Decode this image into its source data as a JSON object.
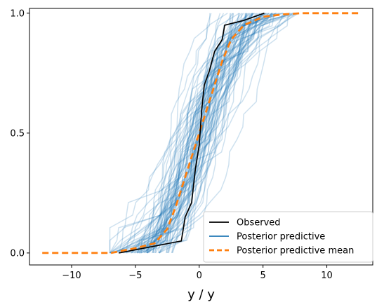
{
  "chart_data": {
    "type": "line",
    "title": "",
    "xlabel": "y / y",
    "ylabel": "",
    "xlim": [
      -13.3,
      13.6
    ],
    "ylim": [
      -0.05,
      1.02
    ],
    "xticks": [
      -10,
      -5,
      0,
      5,
      10
    ],
    "xtick_labels": [
      "−10",
      "−5",
      "0",
      "5",
      "10"
    ],
    "yticks": [
      0.0,
      0.5,
      1.0
    ],
    "ytick_labels": [
      "0.0",
      "0.5",
      "1.0"
    ],
    "grid": false,
    "legend_position": "bottom-right",
    "colors": {
      "observed": "#000000",
      "posterior_predictive": "#1f77b4",
      "posterior_predictive_mean": "#ff7f0e"
    },
    "series": [
      {
        "name": "Observed",
        "style": "solid",
        "points": [
          [
            -6.3,
            0.0
          ],
          [
            -1.4,
            0.05
          ],
          [
            -1.1,
            0.15
          ],
          [
            -0.6,
            0.21
          ],
          [
            -0.3,
            0.35
          ],
          [
            0.0,
            0.45
          ],
          [
            0.2,
            0.6
          ],
          [
            0.4,
            0.7
          ],
          [
            0.8,
            0.76
          ],
          [
            1.2,
            0.84
          ],
          [
            1.8,
            0.89
          ],
          [
            2.0,
            0.95
          ],
          [
            3.5,
            0.97
          ],
          [
            5.1,
            1.0
          ]
        ]
      },
      {
        "name": "Posterior predictive",
        "style": "solid",
        "alpha": 0.22,
        "draws": 80,
        "range": [
          -7.0,
          7.8
        ]
      },
      {
        "name": "Posterior predictive mean",
        "style": "dashed",
        "points": [
          [
            -12.3,
            0.0
          ],
          [
            -6.9,
            0.0
          ],
          [
            -6.0,
            0.01
          ],
          [
            -5.0,
            0.02
          ],
          [
            -3.5,
            0.04
          ],
          [
            -2.5,
            0.1
          ],
          [
            -1.8,
            0.2
          ],
          [
            -1.2,
            0.3
          ],
          [
            -0.6,
            0.4
          ],
          [
            0.0,
            0.5
          ],
          [
            0.6,
            0.6
          ],
          [
            1.2,
            0.7
          ],
          [
            1.8,
            0.8
          ],
          [
            2.5,
            0.89
          ],
          [
            3.5,
            0.95
          ],
          [
            5.0,
            0.985
          ],
          [
            6.5,
            0.995
          ],
          [
            8.0,
            1.0
          ],
          [
            12.7,
            1.0
          ]
        ]
      }
    ],
    "legend": [
      "Observed",
      "Posterior predictive",
      "Posterior predictive mean"
    ]
  }
}
